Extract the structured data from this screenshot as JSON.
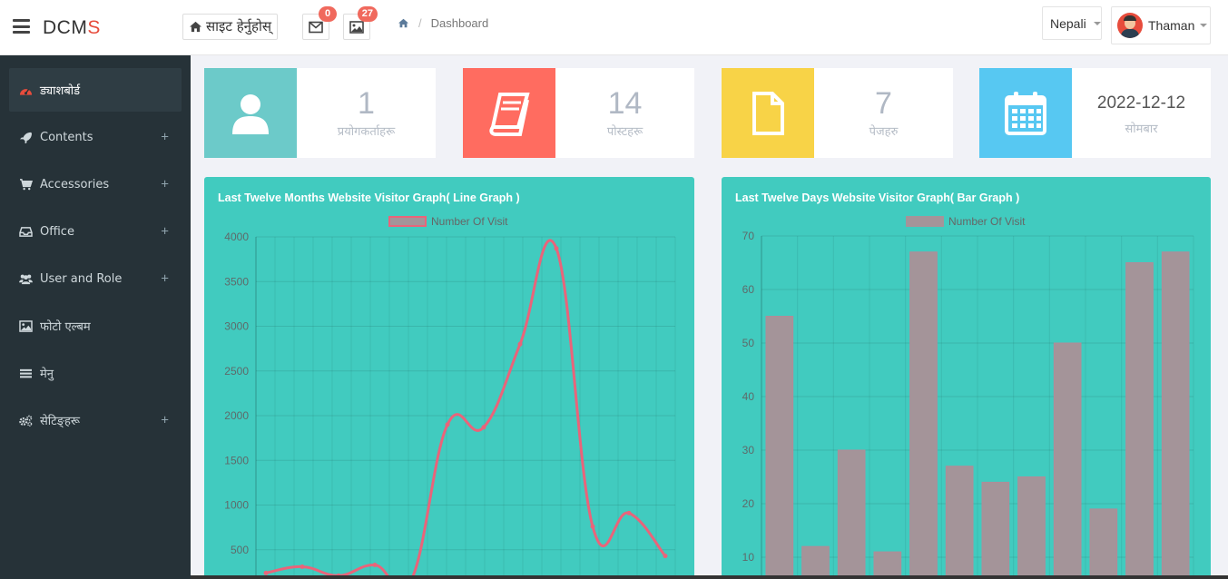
{
  "header": {
    "brand_main": "DCM",
    "brand_accent": "S",
    "visit_site": "साइट हेर्नुहोस्",
    "messages_count": "0",
    "media_count": "27",
    "breadcrumb_current": "Dashboard",
    "language": "Nepali",
    "user_name": "Thaman"
  },
  "sidebar": {
    "items": [
      {
        "label": "ड्याशबोर्ड",
        "icon": "dashboard-icon",
        "expandable": false
      },
      {
        "label": "Contents",
        "icon": "rocket-icon",
        "expandable": true
      },
      {
        "label": "Accessories",
        "icon": "cart-icon",
        "expandable": true
      },
      {
        "label": "Office",
        "icon": "inbox-icon",
        "expandable": true
      },
      {
        "label": "User and Role",
        "icon": "users-icon",
        "expandable": true
      },
      {
        "label": "फोटो एल्बम",
        "icon": "image-icon",
        "expandable": false
      },
      {
        "label": "मेनु",
        "icon": "bars-icon",
        "expandable": false
      },
      {
        "label": "सेटिङ्हरू",
        "icon": "gears-icon",
        "expandable": true
      }
    ],
    "plus_symbol": "+"
  },
  "stats": [
    {
      "value": "1",
      "label": "प्रयोगकर्ताहरू",
      "color": "#6ccac9",
      "icon": "user-icon"
    },
    {
      "value": "14",
      "label": "पोस्टहरू",
      "color": "#ff6c60",
      "icon": "book-icon"
    },
    {
      "value": "7",
      "label": "पेजहरु",
      "color": "#f8d347",
      "icon": "file-icon"
    },
    {
      "value": "2022-12-12",
      "label": "सोमबार",
      "color": "#57c8f2",
      "icon": "calendar-icon"
    }
  ],
  "chart_data": [
    {
      "type": "line",
      "title": "Last Twelve Months Website Visitor Graph( Line Graph )",
      "legend": "Number Of Visit",
      "series_color": "#e9647a",
      "ylim_visible": [
        0,
        4000
      ],
      "yticks": [
        500,
        1000,
        1500,
        2000,
        2500,
        3000,
        3500,
        4000
      ],
      "points": [
        {
          "x": 0,
          "y": 240
        },
        {
          "x": 1,
          "y": 310
        },
        {
          "x": 2,
          "y": 210
        },
        {
          "x": 3,
          "y": 330
        },
        {
          "x": 4,
          "y": 160
        },
        {
          "x": 5,
          "y": 1900
        },
        {
          "x": 6,
          "y": 1870
        },
        {
          "x": 7,
          "y": 2800
        },
        {
          "x": 8,
          "y": 3870
        },
        {
          "x": 9,
          "y": 760
        },
        {
          "x": 10,
          "y": 910
        },
        {
          "x": 11,
          "y": 430
        }
      ],
      "grid": true
    },
    {
      "type": "bar",
      "title": "Last Twelve Days Website Visitor Graph( Bar Graph )",
      "legend": "Number Of Visit",
      "series_color": "#a49499",
      "ylim": [
        0,
        70
      ],
      "yticks": [
        10,
        20,
        30,
        40,
        50,
        60,
        70
      ],
      "values": [
        55,
        12,
        30,
        11,
        67,
        27,
        24,
        25,
        50,
        19,
        65,
        67
      ],
      "grid": true
    }
  ]
}
